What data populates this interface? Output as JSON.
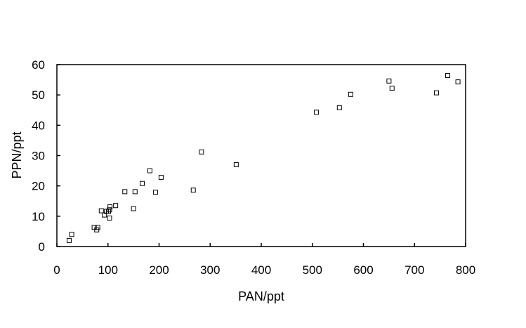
{
  "chart_data": {
    "type": "scatter",
    "title": "",
    "xlabel": "PAN/ppt",
    "ylabel": "PPN/ppt",
    "xlim": [
      0,
      800
    ],
    "ylim": [
      0,
      60
    ],
    "xticks": [
      0,
      100,
      200,
      300,
      400,
      500,
      600,
      700,
      800
    ],
    "yticks": [
      0,
      10,
      20,
      30,
      40,
      50,
      60
    ],
    "grid": false,
    "legend": "none",
    "marker": "open-square",
    "colors": {
      "marker": "#000000",
      "axis": "#000000"
    },
    "points": [
      {
        "x": 24,
        "y": 2.0
      },
      {
        "x": 29,
        "y": 4.0
      },
      {
        "x": 73,
        "y": 6.3
      },
      {
        "x": 78,
        "y": 5.5
      },
      {
        "x": 80,
        "y": 6.3
      },
      {
        "x": 87,
        "y": 11.8
      },
      {
        "x": 93,
        "y": 10.4
      },
      {
        "x": 97,
        "y": 11.6
      },
      {
        "x": 101,
        "y": 11.6
      },
      {
        "x": 103,
        "y": 9.4
      },
      {
        "x": 103,
        "y": 12.1
      },
      {
        "x": 104,
        "y": 13.1
      },
      {
        "x": 115,
        "y": 13.5
      },
      {
        "x": 133,
        "y": 18.1
      },
      {
        "x": 150,
        "y": 12.5
      },
      {
        "x": 153,
        "y": 18.1
      },
      {
        "x": 167,
        "y": 20.8
      },
      {
        "x": 182,
        "y": 25.0
      },
      {
        "x": 193,
        "y": 17.9
      },
      {
        "x": 204,
        "y": 22.8
      },
      {
        "x": 267,
        "y": 18.6
      },
      {
        "x": 283,
        "y": 31.2
      },
      {
        "x": 351,
        "y": 27.0
      },
      {
        "x": 508,
        "y": 44.3
      },
      {
        "x": 553,
        "y": 45.8
      },
      {
        "x": 575,
        "y": 50.2
      },
      {
        "x": 650,
        "y": 54.6
      },
      {
        "x": 656,
        "y": 52.2
      },
      {
        "x": 743,
        "y": 50.7
      },
      {
        "x": 765,
        "y": 56.4
      },
      {
        "x": 785,
        "y": 54.3
      }
    ]
  }
}
